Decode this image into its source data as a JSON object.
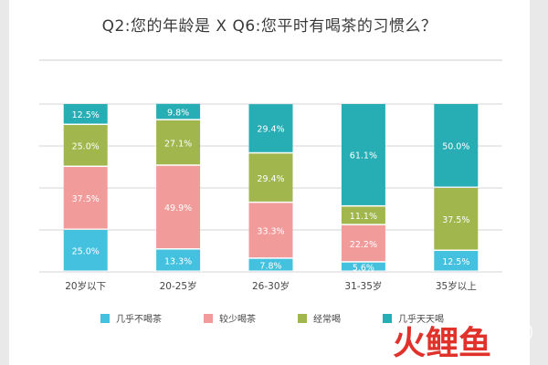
{
  "chart_data": {
    "type": "bar",
    "stacked": true,
    "title": "Q2:您的年龄是 X Q6:您平时有喝茶的习惯么？",
    "categories": [
      "20岁以下",
      "20-25岁",
      "26-30岁",
      "31-35岁",
      "35岁以上"
    ],
    "series": [
      {
        "name": "几乎不喝茶",
        "color": "#43c1df",
        "values": [
          25.0,
          13.3,
          7.8,
          5.6,
          12.5
        ]
      },
      {
        "name": "较少喝茶",
        "color": "#f29b9b",
        "values": [
          37.5,
          49.9,
          33.3,
          22.2,
          0
        ]
      },
      {
        "name": "经常喝",
        "color": "#a1b64c",
        "values": [
          25.0,
          27.1,
          29.4,
          11.1,
          37.5
        ]
      },
      {
        "name": "几乎天天喝",
        "color": "#27aeb5",
        "values": [
          12.5,
          9.8,
          29.4,
          61.1,
          50.0
        ]
      }
    ],
    "value_labels": [
      [
        "25.0%",
        "37.5%",
        "25.0%",
        "12.5%"
      ],
      [
        "13.3%",
        "49.9%",
        "27.1%",
        "9.8%"
      ],
      [
        "7.8%",
        "33.3%",
        "29.4%",
        "29.4%"
      ],
      [
        "5.6%",
        "22.2%",
        "11.1%",
        "61.1%"
      ],
      [
        "12.5%",
        "",
        "37.5%",
        "50.0%"
      ]
    ],
    "ylim": [
      0,
      100
    ],
    "grid": true,
    "legend": "bottom"
  },
  "watermark": {
    "text": "火鲤鱼",
    "color": "#e0312a"
  }
}
